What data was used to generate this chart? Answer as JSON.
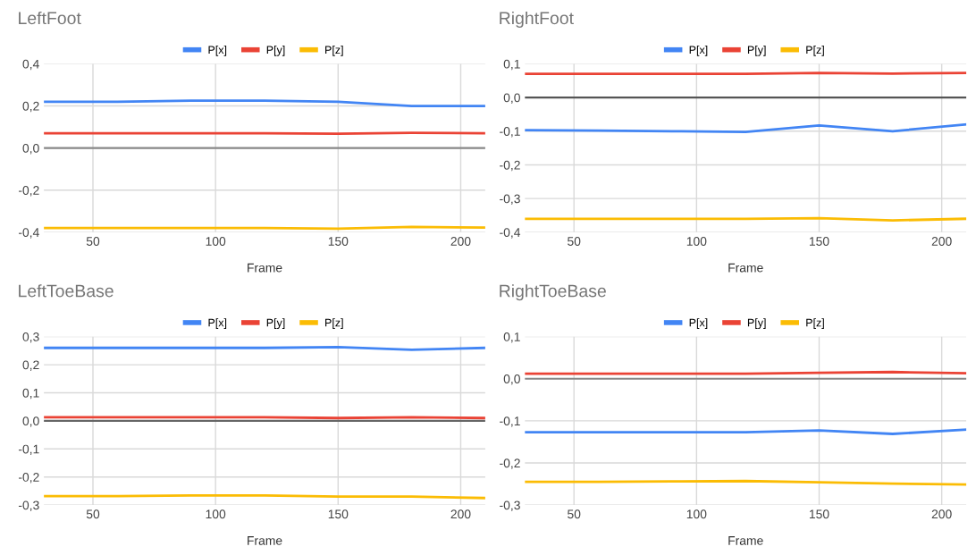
{
  "chart_data": [
    {
      "type": "line",
      "title": "LeftFoot",
      "xlabel": "Frame",
      "x": [
        30,
        60,
        90,
        120,
        150,
        180,
        210
      ],
      "xlim": [
        30,
        210
      ],
      "xticks": [
        50,
        100,
        150,
        200
      ],
      "ylim": [
        -0.4,
        0.4
      ],
      "yticks": [
        {
          "value": -0.4,
          "label": "-0,4"
        },
        {
          "value": -0.2,
          "label": "-0,2"
        },
        {
          "value": 0,
          "label": "0,0"
        },
        {
          "value": 0.2,
          "label": "0,2"
        },
        {
          "value": 0.4,
          "label": "0,4"
        }
      ],
      "grid": true,
      "legend": "top",
      "ref_lines": [
        {
          "axis": "y",
          "value": 0,
          "color": "#888888"
        }
      ],
      "series": [
        {
          "name": "P[x]",
          "color": "#4285f4",
          "values": [
            0.22,
            0.22,
            0.225,
            0.225,
            0.22,
            0.2,
            0.2
          ]
        },
        {
          "name": "P[y]",
          "color": "#ea4335",
          "values": [
            0.07,
            0.07,
            0.07,
            0.07,
            0.068,
            0.072,
            0.07
          ]
        },
        {
          "name": "P[z]",
          "color": "#fbbc04",
          "values": [
            -0.38,
            -0.38,
            -0.38,
            -0.38,
            -0.383,
            -0.375,
            -0.378
          ]
        }
      ]
    },
    {
      "type": "line",
      "title": "RightFoot",
      "xlabel": "Frame",
      "x": [
        30,
        60,
        90,
        120,
        150,
        180,
        210
      ],
      "xlim": [
        30,
        210
      ],
      "xticks": [
        50,
        100,
        150,
        200
      ],
      "ylim": [
        -0.4,
        0.1
      ],
      "yticks": [
        {
          "value": -0.4,
          "label": "-0,4"
        },
        {
          "value": -0.3,
          "label": "-0,3"
        },
        {
          "value": -0.2,
          "label": "-0,2"
        },
        {
          "value": -0.1,
          "label": "-0,1"
        },
        {
          "value": 0,
          "label": "0,0"
        },
        {
          "value": 0.1,
          "label": "0,1"
        }
      ],
      "grid": true,
      "legend": "top",
      "ref_lines": [
        {
          "axis": "y",
          "value": 0,
          "color": "#555555"
        }
      ],
      "series": [
        {
          "name": "P[x]",
          "color": "#4285f4",
          "values": [
            -0.097,
            -0.098,
            -0.1,
            -0.102,
            -0.083,
            -0.1,
            -0.08
          ]
        },
        {
          "name": "P[y]",
          "color": "#ea4335",
          "values": [
            0.07,
            0.07,
            0.07,
            0.07,
            0.073,
            0.071,
            0.073
          ]
        },
        {
          "name": "P[z]",
          "color": "#fbbc04",
          "values": [
            -0.36,
            -0.36,
            -0.36,
            -0.36,
            -0.358,
            -0.365,
            -0.36
          ]
        }
      ]
    },
    {
      "type": "line",
      "title": "LeftToeBase",
      "xlabel": "Frame",
      "x": [
        30,
        60,
        90,
        120,
        150,
        180,
        210
      ],
      "xlim": [
        30,
        210
      ],
      "xticks": [
        50,
        100,
        150,
        200
      ],
      "ylim": [
        -0.3,
        0.3
      ],
      "yticks": [
        {
          "value": -0.3,
          "label": "-0,3"
        },
        {
          "value": -0.2,
          "label": "-0,2"
        },
        {
          "value": -0.1,
          "label": "-0,1"
        },
        {
          "value": 0,
          "label": "0,0"
        },
        {
          "value": 0.1,
          "label": "0,1"
        },
        {
          "value": 0.2,
          "label": "0,2"
        },
        {
          "value": 0.3,
          "label": "0,3"
        }
      ],
      "grid": true,
      "legend": "top",
      "ref_lines": [
        {
          "axis": "y",
          "value": 0,
          "color": "#666666"
        }
      ],
      "series": [
        {
          "name": "P[x]",
          "color": "#4285f4",
          "values": [
            0.26,
            0.26,
            0.26,
            0.26,
            0.263,
            0.253,
            0.26
          ]
        },
        {
          "name": "P[y]",
          "color": "#ea4335",
          "values": [
            0.013,
            0.013,
            0.013,
            0.013,
            0.01,
            0.013,
            0.01
          ]
        },
        {
          "name": "P[z]",
          "color": "#fbbc04",
          "values": [
            -0.268,
            -0.268,
            -0.266,
            -0.266,
            -0.27,
            -0.27,
            -0.275
          ]
        }
      ]
    },
    {
      "type": "line",
      "title": "RightToeBase",
      "xlabel": "Frame",
      "x": [
        30,
        60,
        90,
        120,
        150,
        180,
        210
      ],
      "xlim": [
        30,
        210
      ],
      "xticks": [
        50,
        100,
        150,
        200
      ],
      "ylim": [
        -0.3,
        0.1
      ],
      "yticks": [
        {
          "value": -0.3,
          "label": "-0,3"
        },
        {
          "value": -0.2,
          "label": "-0,2"
        },
        {
          "value": -0.1,
          "label": "-0,1"
        },
        {
          "value": 0,
          "label": "0,0"
        },
        {
          "value": 0.1,
          "label": "0,1"
        }
      ],
      "grid": true,
      "legend": "top",
      "ref_lines": [
        {
          "axis": "y",
          "value": 0,
          "color": "#888888"
        }
      ],
      "series": [
        {
          "name": "P[x]",
          "color": "#4285f4",
          "values": [
            -0.127,
            -0.127,
            -0.127,
            -0.127,
            -0.123,
            -0.131,
            -0.121
          ]
        },
        {
          "name": "P[y]",
          "color": "#ea4335",
          "values": [
            0.012,
            0.012,
            0.012,
            0.012,
            0.014,
            0.016,
            0.013
          ]
        },
        {
          "name": "P[z]",
          "color": "#fbbc04",
          "values": [
            -0.245,
            -0.245,
            -0.244,
            -0.243,
            -0.246,
            -0.249,
            -0.251
          ]
        }
      ]
    }
  ]
}
